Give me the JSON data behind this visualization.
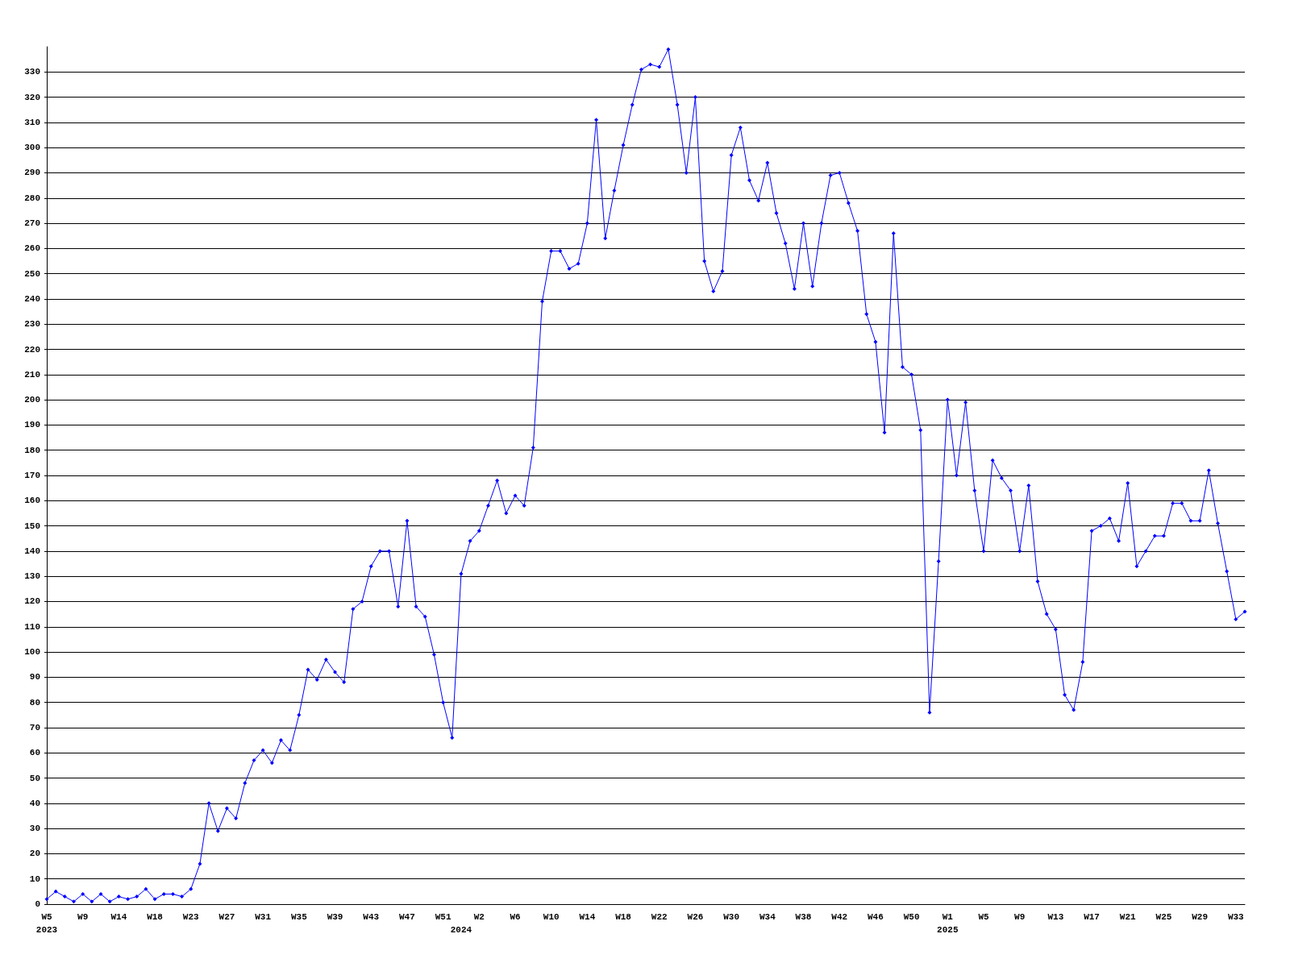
{
  "chart_data": {
    "type": "line",
    "categories": [
      "W5\n2023",
      null,
      null,
      null,
      "W9",
      null,
      null,
      null,
      "W14",
      null,
      null,
      null,
      "W18",
      null,
      null,
      null,
      "W23",
      null,
      null,
      null,
      "W27",
      null,
      null,
      null,
      "W31",
      null,
      null,
      null,
      "W35",
      null,
      null,
      null,
      "W39",
      null,
      null,
      null,
      "W43",
      null,
      null,
      null,
      "W47",
      null,
      null,
      null,
      "W51",
      null,
      "\n2024",
      null,
      "W2",
      null,
      null,
      null,
      "W6",
      null,
      null,
      null,
      "W10",
      null,
      null,
      null,
      "W14",
      null,
      null,
      null,
      "W18",
      null,
      null,
      null,
      "W22",
      null,
      null,
      null,
      "W26",
      null,
      null,
      null,
      "W30",
      null,
      null,
      null,
      "W34",
      null,
      null,
      null,
      "W38",
      null,
      null,
      null,
      "W42",
      null,
      null,
      null,
      "W46",
      null,
      null,
      null,
      "W50",
      null,
      null,
      null,
      "W1\n2025",
      null,
      null,
      null,
      "W5",
      null,
      null,
      null,
      "W9",
      null,
      null,
      null,
      "W13",
      null,
      null,
      null,
      "W17",
      null,
      null,
      null,
      "W21",
      null,
      null,
      null,
      "W25",
      null,
      null,
      null,
      "W29",
      null,
      null,
      null,
      "W33",
      null
    ],
    "series": [
      {
        "color": "#0000ff",
        "values": [
          2,
          5,
          3,
          1,
          4,
          1,
          4,
          1,
          3,
          2,
          3,
          6,
          2,
          4,
          4,
          3,
          6,
          16,
          40,
          29,
          38,
          34,
          48,
          57,
          61,
          56,
          65,
          61,
          75,
          93,
          89,
          97,
          92,
          88,
          117,
          120,
          134,
          140,
          140,
          118,
          152,
          118,
          114,
          99,
          80,
          66,
          131,
          144,
          148,
          158,
          168,
          155,
          162,
          158,
          181,
          239,
          259,
          259,
          252,
          254,
          270,
          311,
          264,
          283,
          301,
          317,
          331,
          333,
          332,
          339,
          317,
          290,
          320,
          255,
          243,
          251,
          297,
          308,
          287,
          279,
          294,
          274,
          262,
          244,
          270,
          245,
          270,
          289,
          290,
          278,
          267,
          234,
          223,
          187,
          266,
          213,
          210,
          188,
          76,
          136,
          200,
          170,
          199,
          164,
          140,
          176,
          169,
          164,
          140,
          166,
          128,
          115,
          109,
          83,
          77,
          96,
          148,
          150,
          153,
          144,
          167,
          134,
          140,
          146,
          146,
          159,
          159,
          152,
          152,
          172,
          151,
          132,
          113,
          116
        ]
      }
    ],
    "ylim": [
      0,
      340
    ],
    "yticks": [
      0,
      10,
      20,
      30,
      40,
      50,
      60,
      70,
      80,
      90,
      100,
      110,
      120,
      130,
      140,
      150,
      160,
      170,
      180,
      190,
      200,
      210,
      220,
      230,
      240,
      250,
      260,
      270,
      280,
      290,
      300,
      310,
      320,
      330
    ],
    "grid": "y",
    "marker": "diamond",
    "line_style": "solid"
  }
}
